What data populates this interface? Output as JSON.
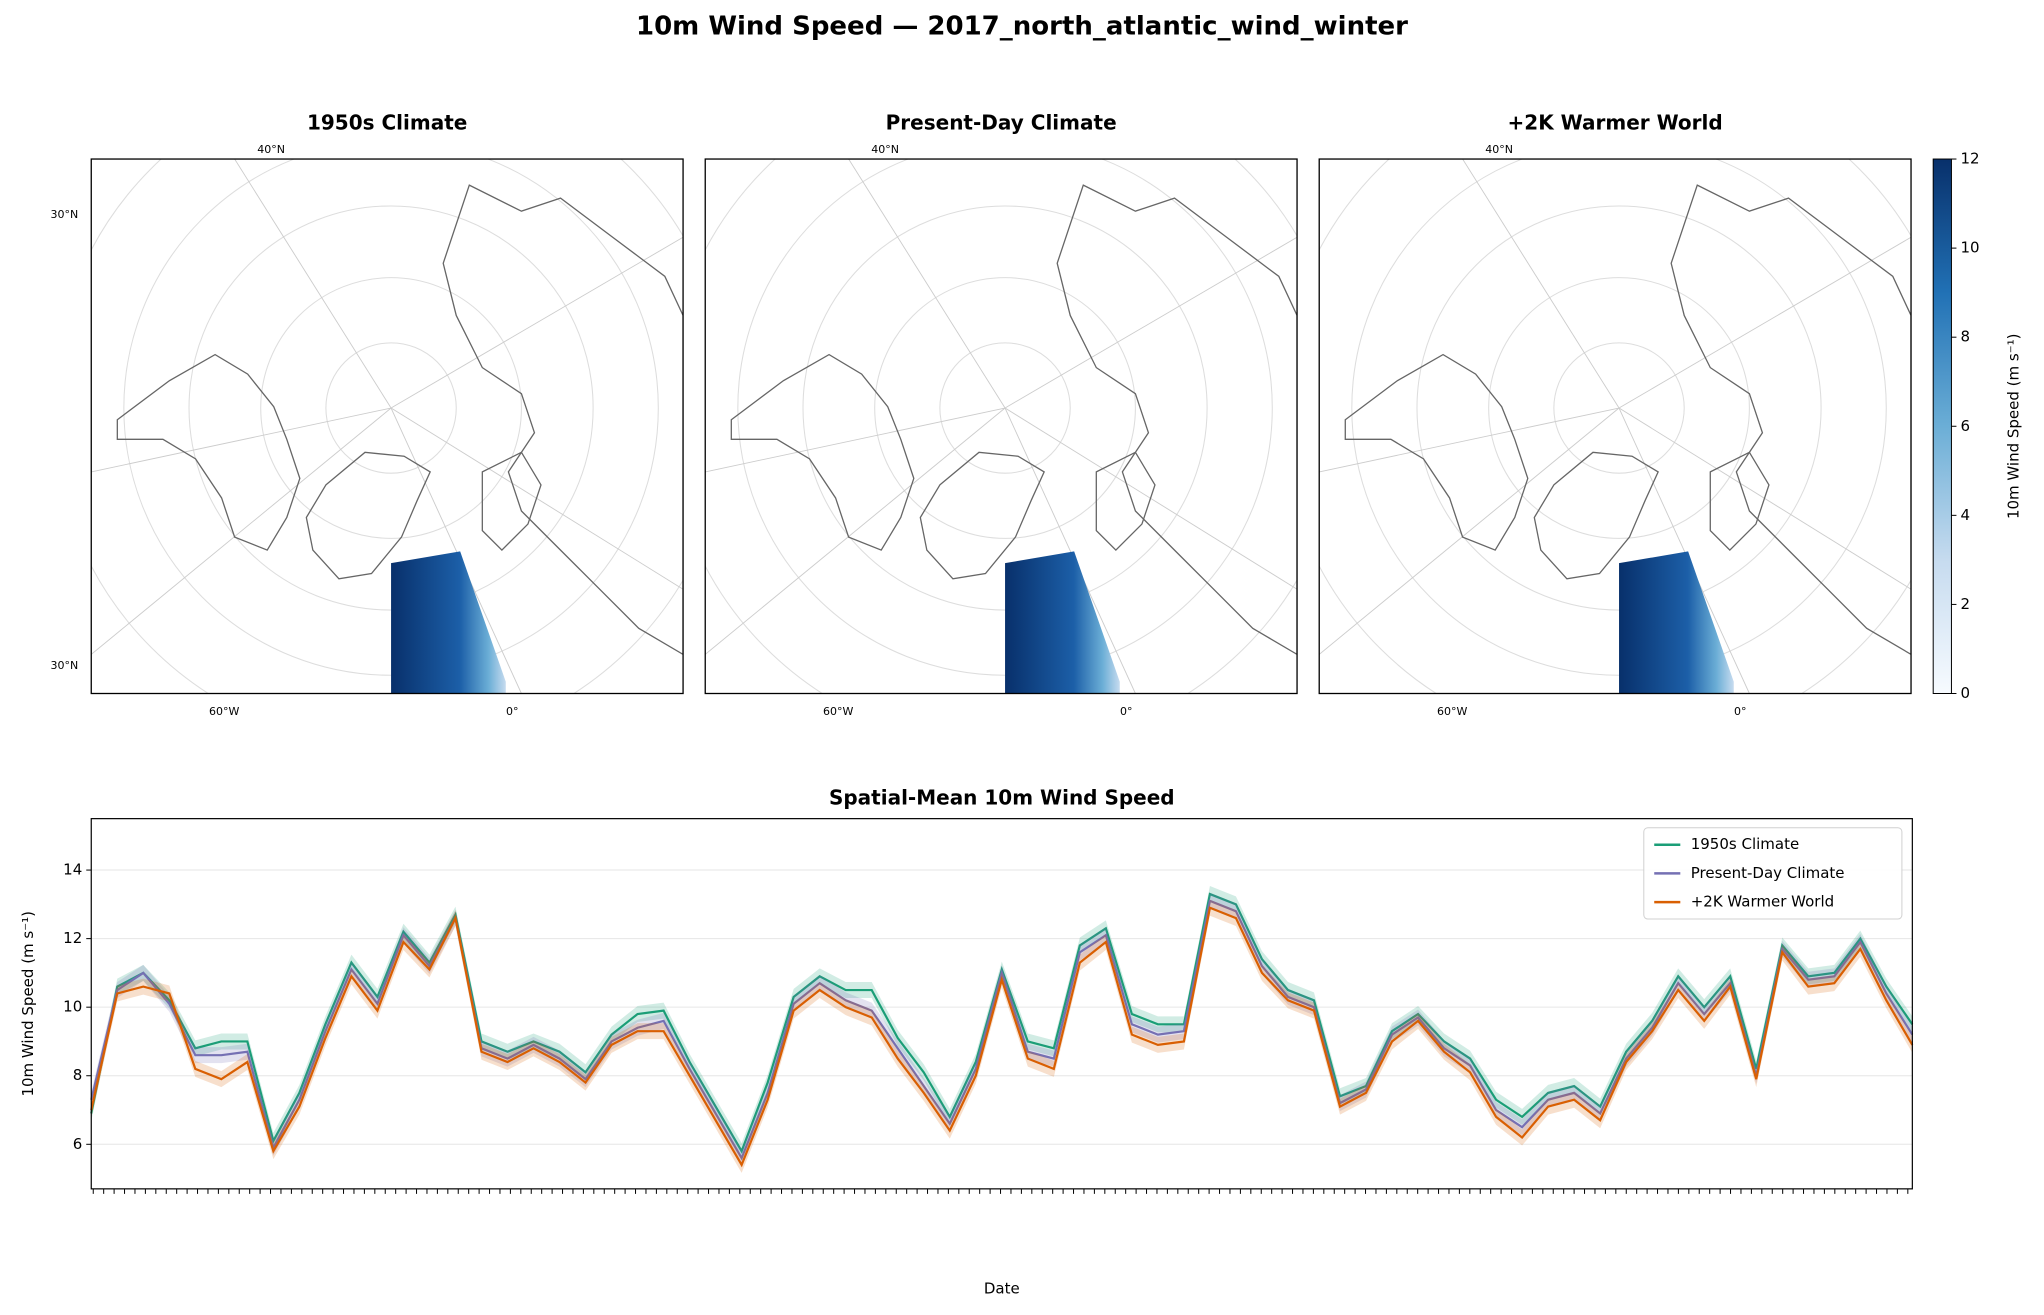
{
  "title": "10m Wind Speed — 2017_north_atlantic_wind_winter",
  "maps": {
    "panels": [
      {
        "title": "1950s Climate",
        "lat_labels": [
          "40°N",
          "30°N",
          "30°N"
        ],
        "lon_labels": [
          "60°W",
          "0°"
        ]
      },
      {
        "title": "Present-Day Climate",
        "lat_labels": [
          "40°N"
        ],
        "lon_labels": [
          "60°W",
          "0°"
        ]
      },
      {
        "title": "+2K Warmer World",
        "lat_labels": [
          "40°N"
        ],
        "lon_labels": [
          "60°W",
          "0°"
        ]
      }
    ],
    "colorbar": {
      "label": "10m Wind Speed (m s⁻¹)",
      "lim": [
        0,
        12
      ],
      "ticks": [
        0,
        2,
        4,
        6,
        8,
        10,
        12
      ]
    }
  },
  "chart_data": {
    "type": "line",
    "title": "Spatial-Mean 10m Wind Speed",
    "xlabel": "Date",
    "ylabel": "10m Wind Speed (m s⁻¹)",
    "ylim": [
      4.7,
      15.5
    ],
    "yticks": [
      6,
      8,
      10,
      12,
      14
    ],
    "grid": true,
    "legend": "upper right",
    "series": [
      {
        "name": "1950s Climate",
        "color": "#1b9e77",
        "values": [
          6.9,
          10.6,
          11.0,
          10.2,
          8.8,
          9.0,
          9.0,
          6.1,
          7.5,
          9.5,
          11.3,
          10.3,
          12.2,
          11.3,
          12.7,
          9.0,
          8.7,
          9.0,
          8.7,
          8.1,
          9.2,
          9.8,
          9.9,
          8.4,
          7.1,
          5.8,
          7.8,
          10.3,
          10.9,
          10.5,
          10.5,
          9.1,
          8.1,
          6.8,
          8.4,
          11.1,
          9.0,
          8.8,
          11.8,
          12.3,
          9.8,
          9.5,
          9.5,
          13.3,
          13.0,
          11.4,
          10.5,
          10.2,
          7.4,
          7.7,
          9.3,
          9.8,
          9.0,
          8.5,
          7.3,
          6.8,
          7.5,
          7.7,
          7.1,
          8.7,
          9.6,
          10.9,
          10.0,
          10.9,
          8.2,
          11.8,
          10.9,
          11.0,
          12.0,
          10.6,
          9.5
        ]
      },
      {
        "name": "Present-Day Climate",
        "color": "#7570b3",
        "values": [
          7.3,
          10.5,
          11.0,
          10.1,
          8.6,
          8.6,
          8.7,
          5.9,
          7.3,
          9.3,
          11.1,
          10.1,
          12.1,
          11.2,
          12.6,
          8.8,
          8.5,
          8.9,
          8.5,
          7.9,
          9.0,
          9.4,
          9.6,
          8.2,
          6.9,
          5.6,
          7.5,
          10.1,
          10.7,
          10.2,
          9.9,
          8.8,
          7.7,
          6.6,
          8.2,
          11.0,
          8.7,
          8.5,
          11.6,
          12.1,
          9.5,
          9.2,
          9.3,
          13.1,
          12.8,
          11.2,
          10.3,
          10.0,
          7.2,
          7.6,
          9.2,
          9.7,
          8.8,
          8.3,
          7.0,
          6.5,
          7.3,
          7.5,
          6.9,
          8.5,
          9.4,
          10.7,
          9.8,
          10.7,
          8.0,
          11.7,
          10.8,
          10.9,
          11.9,
          10.4,
          9.2
        ]
      },
      {
        "name": "+2K Warmer World",
        "color": "#d95f02",
        "values": [
          7.0,
          10.4,
          10.6,
          10.4,
          8.2,
          7.9,
          8.4,
          5.8,
          7.1,
          9.1,
          10.9,
          9.9,
          11.9,
          11.1,
          12.6,
          8.7,
          8.4,
          8.8,
          8.4,
          7.8,
          8.9,
          9.3,
          9.3,
          8.0,
          6.7,
          5.4,
          7.3,
          9.9,
          10.5,
          10.0,
          9.7,
          8.5,
          7.5,
          6.4,
          8.0,
          10.8,
          8.5,
          8.2,
          11.3,
          11.9,
          9.2,
          8.9,
          9.0,
          12.9,
          12.6,
          11.0,
          10.2,
          9.9,
          7.1,
          7.5,
          9.0,
          9.6,
          8.7,
          8.1,
          6.8,
          6.2,
          7.1,
          7.3,
          6.7,
          8.4,
          9.3,
          10.5,
          9.6,
          10.6,
          7.9,
          11.6,
          10.6,
          10.7,
          11.7,
          10.2,
          8.9
        ]
      }
    ]
  }
}
